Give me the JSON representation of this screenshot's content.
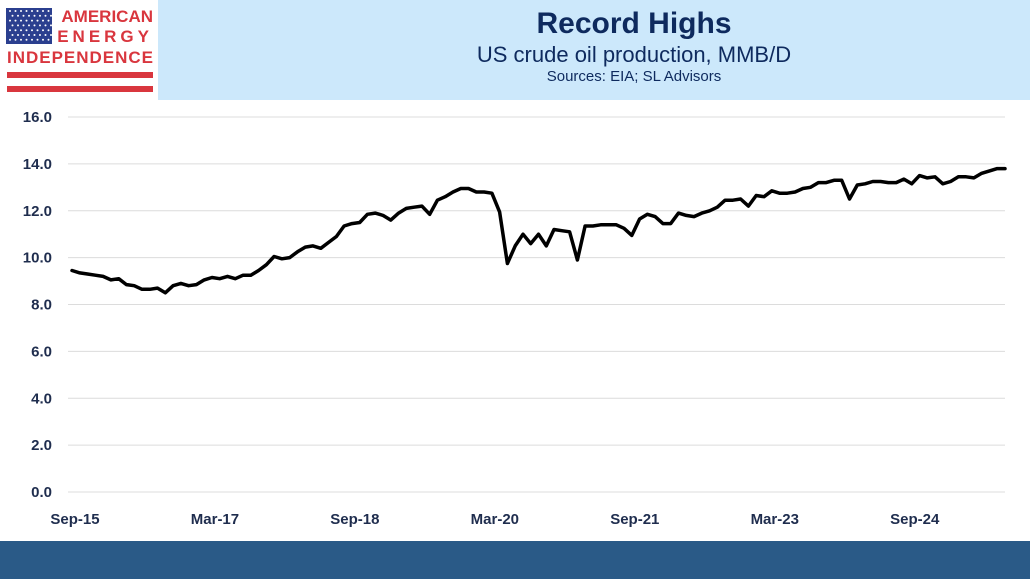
{
  "logo": {
    "line1": "AMERICAN",
    "line2": "ENERGY",
    "line3": "INDEPENDENCE"
  },
  "header": {
    "title": "Record Highs",
    "subtitle": "US crude oil production, MMB/D",
    "sources": "Sources: EIA; SL Advisors"
  },
  "colors": {
    "navy": "#0e2a5e",
    "header_bg": "#cce8fb",
    "bar": "#2a5a87",
    "line": "#000000",
    "logo_red": "#d9363e",
    "flag_blue": "#2b3f8f"
  },
  "chart_data": {
    "type": "line",
    "title": "Record Highs",
    "subtitle": "US crude oil production, MMB/D",
    "xlabel": "",
    "ylabel": "",
    "ylim": [
      0,
      16
    ],
    "yticks": [
      "0.0",
      "2.0",
      "4.0",
      "6.0",
      "8.0",
      "10.0",
      "12.0",
      "14.0",
      "16.0"
    ],
    "xticks": [
      "Sep-15",
      "Mar-17",
      "Sep-18",
      "Mar-20",
      "Sep-21",
      "Mar-23",
      "Sep-24"
    ],
    "xtick_month_index": [
      0,
      18,
      36,
      54,
      72,
      90,
      108
    ],
    "grid": true,
    "series": [
      {
        "name": "US crude oil production",
        "frequency": "monthly from Sep-15",
        "values": [
          9.45,
          9.35,
          9.3,
          9.25,
          9.2,
          9.05,
          9.1,
          8.85,
          8.8,
          8.65,
          8.65,
          8.7,
          8.5,
          8.8,
          8.9,
          8.8,
          8.85,
          9.05,
          9.15,
          9.1,
          9.2,
          9.1,
          9.25,
          9.25,
          9.45,
          9.7,
          10.05,
          9.95,
          10.0,
          10.25,
          10.45,
          10.5,
          10.4,
          10.65,
          10.9,
          11.35,
          11.45,
          11.5,
          11.85,
          11.9,
          11.8,
          11.6,
          11.9,
          12.1,
          12.15,
          12.2,
          11.85,
          12.45,
          12.6,
          12.8,
          12.95,
          12.95,
          12.8,
          12.8,
          12.75,
          11.95,
          9.75,
          10.5,
          11.0,
          10.6,
          11.0,
          10.5,
          11.2,
          11.15,
          11.1,
          9.9,
          11.35,
          11.35,
          11.4,
          11.4,
          11.4,
          11.25,
          10.95,
          11.65,
          11.85,
          11.75,
          11.45,
          11.45,
          11.9,
          11.8,
          11.75,
          11.9,
          12.0,
          12.15,
          12.45,
          12.45,
          12.5,
          12.2,
          12.65,
          12.6,
          12.85,
          12.75,
          12.75,
          12.8,
          12.95,
          13.0,
          13.2,
          13.2,
          13.3,
          13.3,
          12.5,
          13.1,
          13.15,
          13.25,
          13.25,
          13.2,
          13.2,
          13.35,
          13.15,
          13.5,
          13.4,
          13.45,
          13.15,
          13.25,
          13.45,
          13.45,
          13.4,
          13.6,
          13.7,
          13.8,
          13.8
        ]
      }
    ]
  }
}
